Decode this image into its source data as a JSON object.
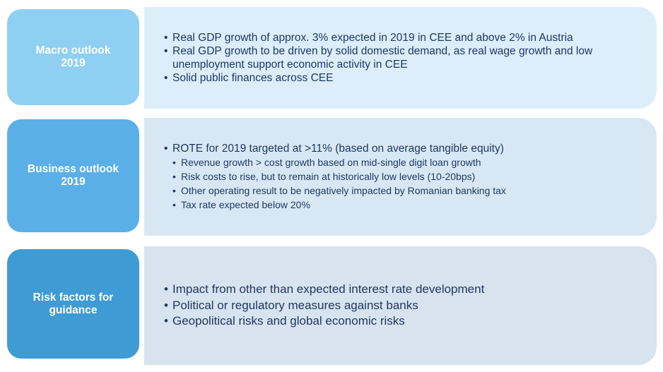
{
  "sections": [
    {
      "label_line1": "Macro outlook",
      "label_line2": "2019",
      "bullets": [
        "Real GDP growth of approx. 3% expected in 2019 in CEE and above 2% in Austria",
        "Real GDP growth to be driven by solid domestic demand, as real wage growth and low unemployment support economic activity in CEE",
        "Solid public finances across CEE"
      ]
    },
    {
      "label_line1": "Business outlook",
      "label_line2": "2019",
      "bullets": [
        "ROTE for 2019 targeted at >11% (based on average tangible equity)"
      ],
      "sub_bullets": [
        "Revenue growth > cost growth based on mid-single digit loan growth",
        "Risk costs to rise, but to remain at historically low levels (10-20bps)",
        "Other operating result to be negatively impacted by Romanian banking tax",
        "Tax rate expected below 20%"
      ]
    },
    {
      "label_line1": "Risk factors for",
      "label_line2": "guidance",
      "bullets": [
        "Impact from other than expected interest rate development",
        "Political or regulatory measures against banks",
        "Geopolitical risks and global economic risks"
      ]
    }
  ],
  "colors": {
    "macro_label_bg": "#8fcff2",
    "macro_content_bg": "#dbeefa",
    "business_label_bg": "#5ab0e6",
    "business_content_bg": "#d7e8f4",
    "risk_label_bg": "#3f9bd4",
    "risk_content_bg": "#d7e3ee",
    "text": "#1f3864"
  }
}
